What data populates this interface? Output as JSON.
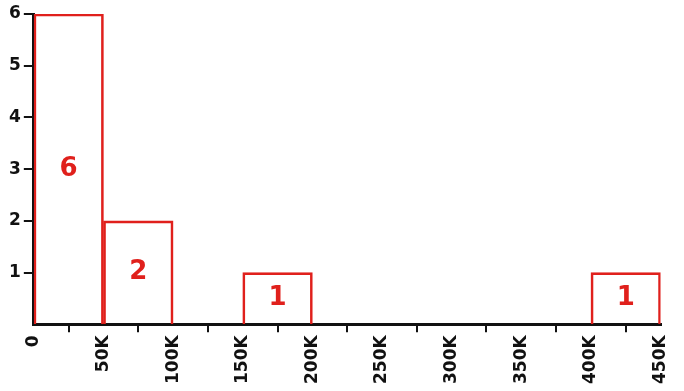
{
  "chart_data": {
    "type": "histogram",
    "bins": [
      0,
      50000,
      100000,
      150000,
      200000,
      250000,
      300000,
      350000,
      400000,
      450000
    ],
    "values": [
      6,
      2,
      0,
      1,
      0,
      0,
      0,
      0,
      1
    ],
    "color": "#e0201c",
    "data_labels": true,
    "grid": false,
    "xlim": [
      0,
      450000
    ],
    "xticks": [
      0,
      {
        "value": 50000,
        "label": "50K"
      },
      {
        "value": 100000,
        "label": "100K"
      },
      {
        "value": 150000,
        "label": "150K"
      },
      {
        "value": 200000,
        "label": "200K"
      },
      {
        "value": 250000,
        "label": "250K"
      },
      {
        "value": 300000,
        "label": "300K"
      },
      {
        "value": 350000,
        "label": "350K"
      },
      {
        "value": 400000,
        "label": "400K"
      },
      {
        "value": 450000,
        "label": "450K"
      }
    ],
    "ylim": [
      0,
      6
    ],
    "yticks": [
      1,
      2,
      3,
      4,
      5,
      6
    ]
  }
}
